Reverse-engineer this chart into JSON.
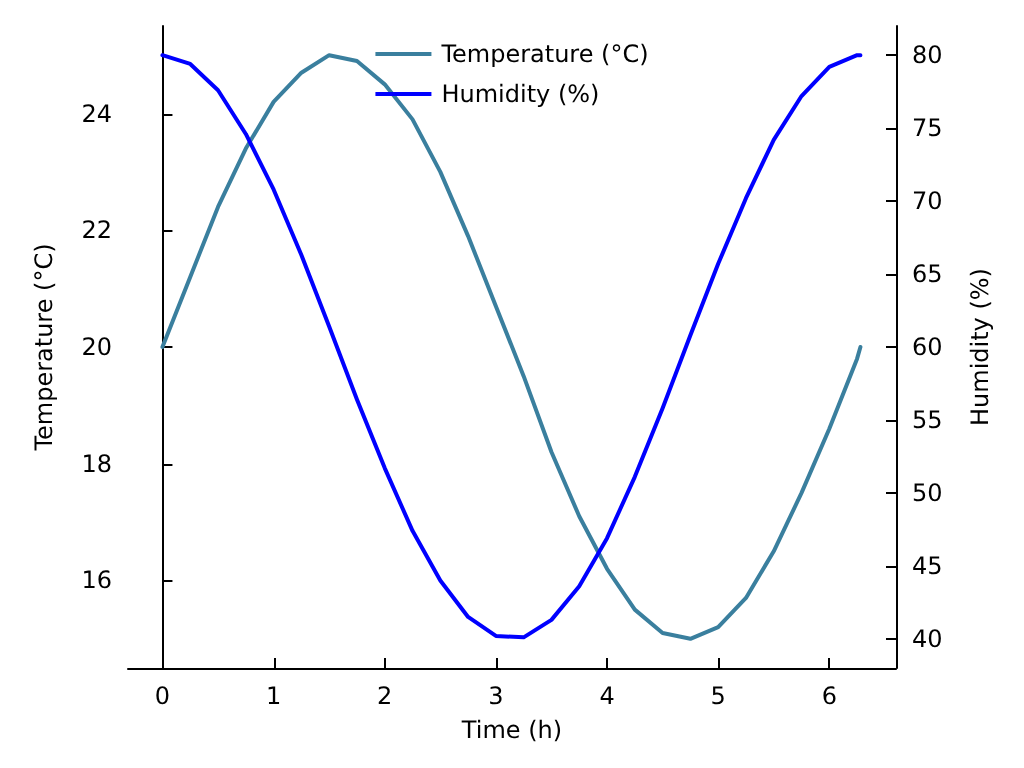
{
  "chart_data": {
    "type": "line",
    "xlabel": "Time (h)",
    "ylabel": "Temperature (°C)",
    "y2label": "Humidity (%)",
    "x": [
      0,
      0.25,
      0.5,
      0.75,
      1,
      1.25,
      1.5,
      1.75,
      2,
      2.25,
      2.5,
      2.75,
      3,
      3.25,
      3.5,
      3.75,
      4,
      4.25,
      4.5,
      4.75,
      5,
      5.25,
      5.5,
      5.75,
      6,
      6.25,
      6.28
    ],
    "series": [
      {
        "name": "Temperature (°C)",
        "color": "#3a7f9e",
        "values": [
          20,
          21.2,
          22.4,
          23.4,
          24.2,
          24.7,
          25,
          24.9,
          24.5,
          23.9,
          23,
          21.9,
          20.7,
          19.5,
          18.2,
          17.1,
          16.2,
          15.5,
          15.1,
          15,
          15.2,
          15.7,
          16.5,
          17.5,
          18.6,
          19.8,
          20
        ]
      },
      {
        "name": "Humidity (%)",
        "color": "#0000ff",
        "axis": "y2",
        "values": [
          80,
          79.4,
          77.6,
          74.6,
          70.8,
          66.3,
          61.4,
          56.4,
          51.7,
          47.4,
          44,
          41.5,
          40.2,
          40.1,
          41.3,
          43.6,
          46.9,
          51.1,
          55.8,
          60.8,
          65.7,
          70.2,
          74.2,
          77.2,
          79.2,
          80,
          80
        ]
      }
    ],
    "xlim": [
      -0.31,
      6.6
    ],
    "xticks": [
      0,
      1,
      2,
      3,
      4,
      5,
      6
    ],
    "ylim": [
      14.5,
      25.5
    ],
    "yticks": [
      16,
      18,
      20,
      22,
      24
    ],
    "y2lim": [
      38,
      82
    ],
    "y2ticks": [
      40,
      45,
      50,
      55,
      60,
      65,
      70,
      75,
      80
    ],
    "legend": "top",
    "grid": false,
    "marker": "none",
    "line_style": "solid"
  }
}
